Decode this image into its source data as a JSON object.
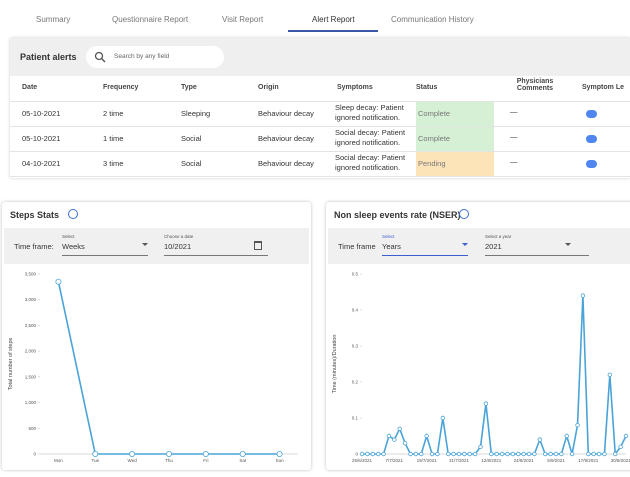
{
  "tabs": [
    "Summary",
    "Questionnaire Report",
    "Visit Report",
    "Alert Report",
    "Communication History"
  ],
  "alerts": {
    "title": "Patient alerts",
    "search_placeholder": "Search by any field",
    "columns": [
      "Date",
      "Frequency",
      "Type",
      "Origin",
      "Symptoms",
      "Status",
      "Physicians Comments",
      "Symptom Le"
    ],
    "rows": [
      {
        "cells": [
          "05-10-2021",
          "2 time",
          "Sleeping",
          "Behaviour decay",
          "Sleep decay: Patient ignored notification.",
          "Complete",
          "—"
        ],
        "status_color": "#d6f0d6",
        "level_color": "#4f86f0"
      },
      {
        "cells": [
          "05-10-2021",
          "1 time",
          "Social",
          "Behaviour decay",
          "Social decay: Patient ignored notification.",
          "Complete",
          "—"
        ],
        "status_color": "#d6f0d6",
        "level_color": "#4f86f0"
      },
      {
        "cells": [
          "04-10-2021",
          "3 time",
          "Social",
          "Behaviour decay",
          "Social decay: Patient ignored notification.",
          "Pending",
          "—"
        ],
        "status_color": "#fde4b8",
        "level_color": "#4f86f0"
      }
    ]
  },
  "panels": [
    {
      "time_frame_label": "Time frame:",
      "select_label": "Select",
      "select_value": "Weeks",
      "picker_label": "Choose a date",
      "picker_value": "10/2021"
    },
    {
      "time_frame_label": "Time frame",
      "select_label": "Select",
      "select_value": "Years",
      "picker_label": "Select a year",
      "picker_value": "2021"
    }
  ],
  "chart_data": [
    {
      "type": "line",
      "title": "Steps Stats",
      "y_label": "Total number of steps",
      "color": "#4aa3d8",
      "categories": [
        "Mon",
        "Tue",
        "Wed",
        "Thu",
        "Fri",
        "Sat",
        "Sun"
      ],
      "values": [
        3350,
        0,
        0,
        0,
        0,
        0,
        0
      ],
      "ylim": [
        0,
        3500
      ],
      "yticks": [
        0,
        500,
        {
          "value": 1000,
          "label": "1,000"
        },
        {
          "value": 1500,
          "label": "1,500"
        },
        {
          "value": 2000,
          "label": "2,000"
        },
        {
          "value": 2500,
          "label": "2,500"
        },
        {
          "value": 3000,
          "label": "3,000"
        },
        {
          "value": 3500,
          "label": "3,500"
        }
      ]
    },
    {
      "type": "line",
      "title": "Non sleep events rate (NSER)",
      "y_label": "Time (minutes)/Duration",
      "color": "#4aa3d8",
      "categories": [
        "25/6/2021",
        null,
        null,
        null,
        null,
        null,
        "7/7/2021",
        null,
        null,
        null,
        null,
        null,
        "19/7/2021",
        null,
        null,
        null,
        null,
        null,
        "31/7/2021",
        null,
        null,
        null,
        null,
        null,
        "12/8/2021",
        null,
        null,
        null,
        null,
        null,
        "24/8/2021",
        null,
        null,
        null,
        null,
        null,
        "5/9/2021",
        null,
        null,
        null,
        null,
        null,
        "17/9/2021",
        null,
        null,
        null,
        null,
        null,
        "30/9/2021",
        null
      ],
      "values": [
        0,
        0,
        0,
        0,
        0,
        0.05,
        0.04,
        0.07,
        0.03,
        0,
        0,
        0,
        0.05,
        0,
        0,
        0.1,
        0,
        0,
        0,
        0,
        0,
        0,
        0.02,
        0.14,
        0,
        0,
        0,
        0,
        0,
        0,
        0,
        0,
        0,
        0.04,
        0,
        0,
        0,
        0,
        0.05,
        0,
        0.08,
        0.44,
        0,
        0,
        0,
        0,
        0.22,
        0,
        0.02,
        0.05
      ],
      "ylim": [
        0,
        0.5
      ],
      "yticks": [
        0,
        0.1,
        0.2,
        0.3,
        0.4,
        0.5
      ]
    }
  ]
}
